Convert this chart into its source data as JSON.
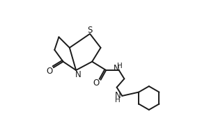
{
  "bg_color": "#ffffff",
  "line_color": "#1a1a1a",
  "line_width": 1.4,
  "font_size": 8.5,
  "atoms": {
    "S_label": "S",
    "N_label": "N",
    "O_keto_label": "O",
    "O_amide_label": "O",
    "NH1_label": "H\nN",
    "NH2_label": "N\nH"
  }
}
